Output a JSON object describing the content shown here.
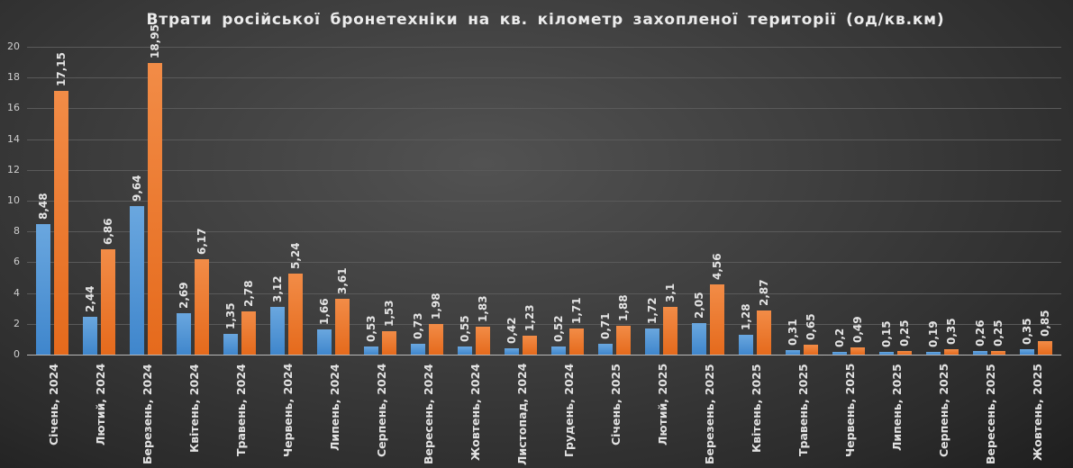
{
  "chart_data": {
    "type": "bar",
    "title": "Втрати російської бронетехніки на кв. кілометр захопленої території (од/кв.км)",
    "xlabel": "",
    "ylabel": "",
    "ylim": [
      0,
      20
    ],
    "yticks": [
      0,
      2,
      4,
      6,
      8,
      10,
      12,
      14,
      16,
      18,
      20
    ],
    "grid": true,
    "legend": "none",
    "categories": [
      "Січень, 2024",
      "Лютий, 2024",
      "Березень, 2024",
      "Квітень, 2024",
      "Травень, 2024",
      "Червень, 2024",
      "Липень, 2024",
      "Серпень, 2024",
      "Вересень, 2024",
      "Жовтень, 2024",
      "Листопад, 2024",
      "Грудень, 2024",
      "Січень, 2025",
      "Лютий, 2025",
      "Березень, 2025",
      "Квітень, 2025",
      "Травень, 2025",
      "Червень, 2025",
      "Липень, 2025",
      "Серпень, 2025",
      "Вересень, 2025",
      "Жовтень, 2025"
    ],
    "series": [
      {
        "name": "series-blue",
        "color": "#4a8fd4",
        "values": [
          8.48,
          2.44,
          9.64,
          2.69,
          1.35,
          3.12,
          1.66,
          0.53,
          0.73,
          0.55,
          0.42,
          0.52,
          0.71,
          1.72,
          2.05,
          1.28,
          0.31,
          0.2,
          0.15,
          0.19,
          0.26,
          0.35
        ],
        "labels": [
          "8,48",
          "2,44",
          "9,64",
          "2,69",
          "1,35",
          "3,12",
          "1,66",
          "0,53",
          "0,73",
          "0,55",
          "0,42",
          "0,52",
          "0,71",
          "1,72",
          "2,05",
          "1,28",
          "0,31",
          "0,2",
          "0,15",
          "0,19",
          "0,26",
          "0,35"
        ]
      },
      {
        "name": "series-orange",
        "color": "#ed7d31",
        "values": [
          17.15,
          6.86,
          18.95,
          6.17,
          2.78,
          5.24,
          3.61,
          1.53,
          1.98,
          1.83,
          1.23,
          1.71,
          1.88,
          3.1,
          4.56,
          2.87,
          0.65,
          0.49,
          0.25,
          0.35,
          0.25,
          0.85
        ],
        "labels": [
          "17,15",
          "6,86",
          "18,95",
          "6,17",
          "2,78",
          "5,24",
          "3,61",
          "1,53",
          "1,98",
          "1,83",
          "1,23",
          "1,71",
          "1,88",
          "3,1",
          "4,56",
          "2,87",
          "0,65",
          "0,49",
          "0,25",
          "0,35",
          "0,25",
          "0,85"
        ]
      }
    ]
  }
}
